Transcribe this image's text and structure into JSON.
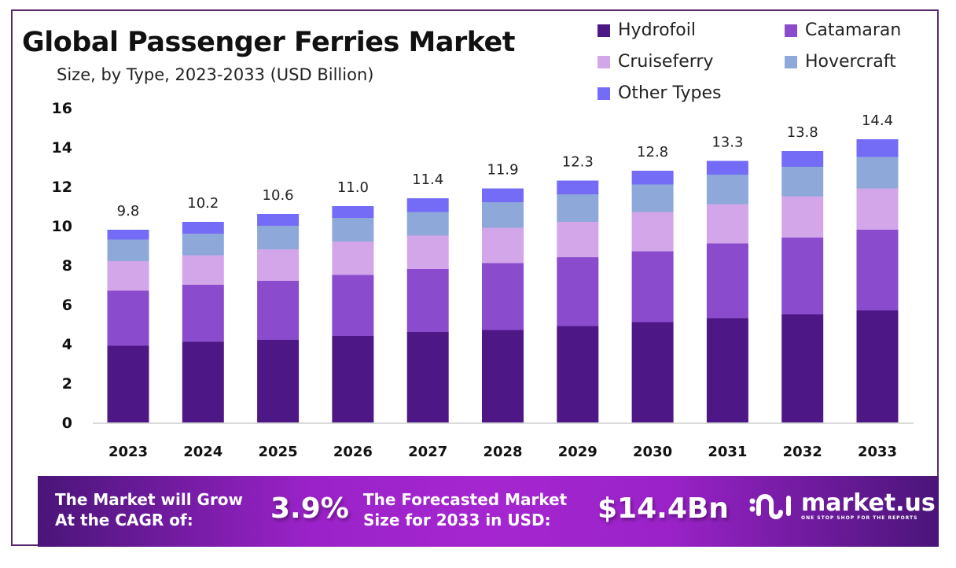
{
  "header": {
    "title": "Global Passenger Ferries Market",
    "subtitle": "Size, by Type, 2023-2033 (USD Billion)"
  },
  "chart_data": {
    "type": "bar",
    "stacked": true,
    "title": "Global Passenger Ferries Market",
    "subtitle": "Size, by Type, 2023-2033 (USD Billion)",
    "xlabel": "",
    "ylabel": "USD Billion",
    "ylim": [
      0,
      16
    ],
    "yticks": [
      0,
      2,
      4,
      6,
      8,
      10,
      12,
      14,
      16
    ],
    "grid": false,
    "legend_position": "top-right",
    "categories": [
      "2023",
      "2024",
      "2025",
      "2026",
      "2027",
      "2028",
      "2029",
      "2030",
      "2031",
      "2032",
      "2033"
    ],
    "totals": [
      9.8,
      10.2,
      10.6,
      11.0,
      11.4,
      11.9,
      12.3,
      12.8,
      13.3,
      13.8,
      14.4
    ],
    "total_labels": [
      "9.8",
      "10.2",
      "10.6",
      "11.0",
      "11.4",
      "11.9",
      "12.3",
      "12.8",
      "13.3",
      "13.8",
      "14.4"
    ],
    "series": [
      {
        "name": "Hydrofoil",
        "color": "#4e1786",
        "values": [
          3.9,
          4.1,
          4.2,
          4.4,
          4.6,
          4.7,
          4.9,
          5.1,
          5.3,
          5.5,
          5.7
        ]
      },
      {
        "name": "Catamaran",
        "color": "#8a4bcc",
        "values": [
          2.8,
          2.9,
          3.0,
          3.1,
          3.2,
          3.4,
          3.5,
          3.6,
          3.8,
          3.9,
          4.1
        ]
      },
      {
        "name": "Cruiseferry",
        "color": "#d2a6e8",
        "values": [
          1.5,
          1.5,
          1.6,
          1.7,
          1.7,
          1.8,
          1.8,
          2.0,
          2.0,
          2.1,
          2.1
        ]
      },
      {
        "name": "Hovercraft",
        "color": "#8ea8da",
        "values": [
          1.1,
          1.1,
          1.2,
          1.2,
          1.2,
          1.3,
          1.4,
          1.4,
          1.5,
          1.5,
          1.6
        ]
      },
      {
        "name": "Other Types",
        "color": "#746cf6",
        "values": [
          0.5,
          0.6,
          0.6,
          0.6,
          0.7,
          0.7,
          0.7,
          0.7,
          0.7,
          0.8,
          0.9
        ]
      }
    ]
  },
  "banner": {
    "cagr_text_line1": "The Market will Grow",
    "cagr_text_line2": "At the CAGR of:",
    "cagr_value": "3.9%",
    "forecast_text_line1": "The Forecasted Market",
    "forecast_text_line2": "Size for 2033 in USD:",
    "forecast_value": "$14.4Bn",
    "logo_name": "market.us",
    "logo_tagline": "ONE STOP SHOP FOR THE REPORTS"
  }
}
